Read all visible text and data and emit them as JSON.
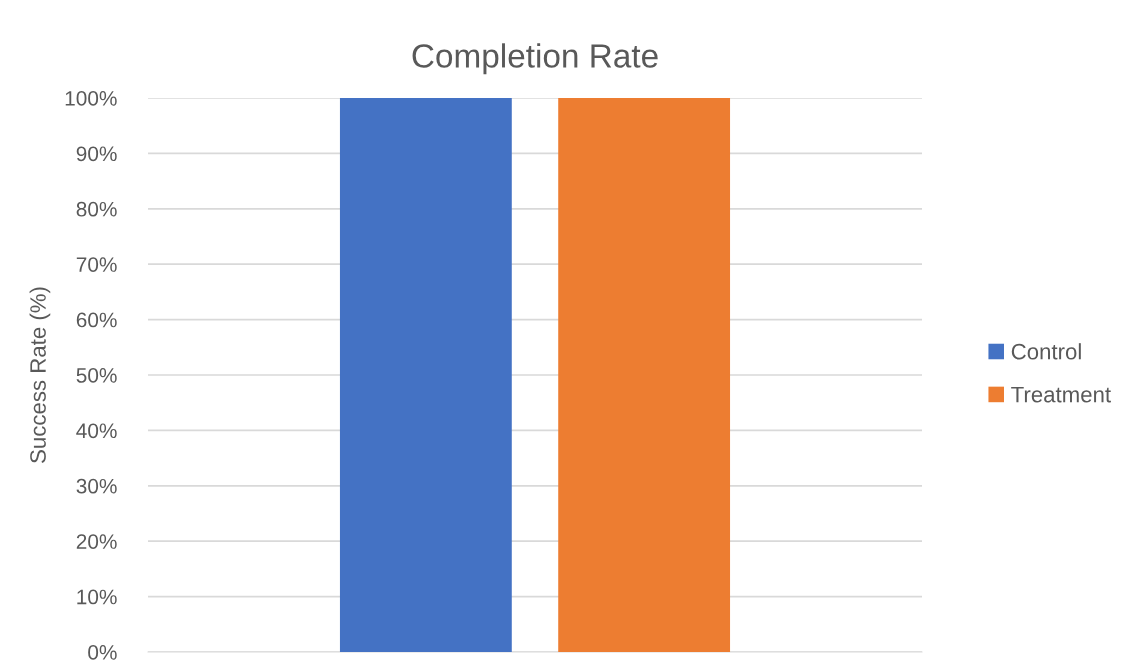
{
  "chart_data": {
    "type": "bar",
    "title": "Completion Rate",
    "ylabel": "Success Rate (%)",
    "categories": [
      null
    ],
    "series": [
      {
        "name": "Control",
        "color": "#4472c4",
        "values": [
          100
        ]
      },
      {
        "name": "Treatment",
        "color": "#ed7d31",
        "values": [
          100
        ]
      }
    ],
    "ylim": [
      0,
      100
    ],
    "yticks": [
      {
        "value": 0,
        "label": "0%"
      },
      {
        "value": 10,
        "label": "10%"
      },
      {
        "value": 20,
        "label": "20%"
      },
      {
        "value": 30,
        "label": "30%"
      },
      {
        "value": 40,
        "label": "40%"
      },
      {
        "value": 50,
        "label": "50%"
      },
      {
        "value": 60,
        "label": "60%"
      },
      {
        "value": 70,
        "label": "70%"
      },
      {
        "value": 80,
        "label": "80%"
      },
      {
        "value": 90,
        "label": "90%"
      },
      {
        "value": 100,
        "label": "100%"
      }
    ],
    "grid": "y",
    "legend": "right"
  }
}
